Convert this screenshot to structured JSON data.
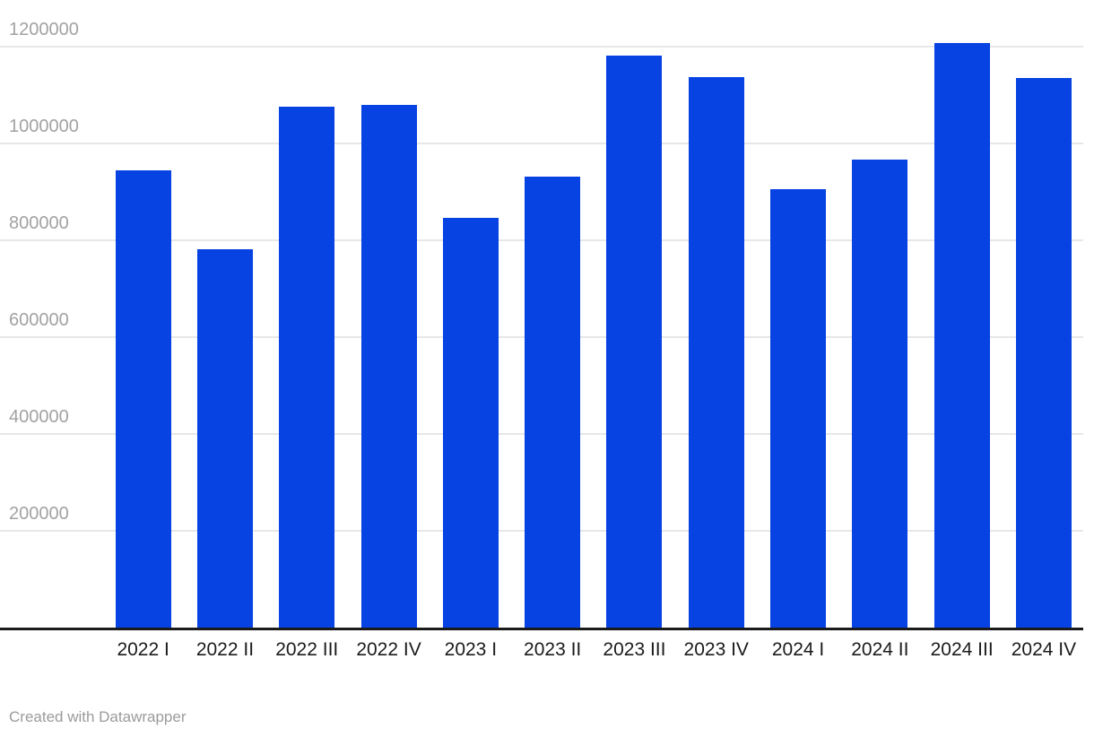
{
  "chart_data": {
    "type": "bar",
    "title": "",
    "xlabel": "",
    "ylabel": "",
    "categories": [
      "2022 I",
      "2022 II",
      "2022 III",
      "2022 IV",
      "2023 I",
      "2023 II",
      "2023 III",
      "2023 IV",
      "2024 I",
      "2024 II",
      "2024 III",
      "2024 IV"
    ],
    "values": [
      945000,
      781000,
      1076000,
      1080000,
      847000,
      931000,
      1181000,
      1137000,
      905000,
      967000,
      1207000,
      1135000
    ],
    "ylim": [
      0,
      1200000
    ],
    "yticks": [
      200000,
      400000,
      600000,
      800000,
      1000000,
      1200000
    ],
    "ytick_labels": [
      "200000",
      "400000",
      "600000",
      "800000",
      "1000000",
      "1200000"
    ],
    "grid": "horizontal",
    "legend": "none",
    "bar_color": "#0742e2",
    "gridline_color": "#e7e7e7",
    "axis_line_color": "#1a1a1a",
    "y_label_color": "#a2a2a2",
    "x_label_color": "#1b1b1b"
  },
  "footer": {
    "attribution": "Created with Datawrapper"
  }
}
